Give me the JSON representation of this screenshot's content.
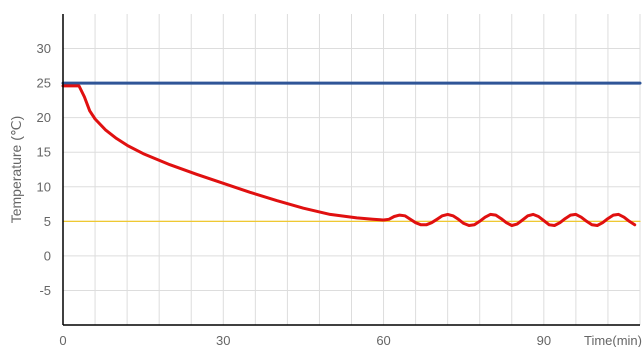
{
  "chart_data": {
    "type": "line",
    "xlabel": "Time(min)",
    "ylabel": "Temperature (℃)",
    "xlim": [
      0,
      108
    ],
    "ylim": [
      -10,
      35
    ],
    "x_ticks": [
      0,
      30,
      60,
      90
    ],
    "y_ticks": [
      -5,
      0,
      5,
      10,
      15,
      20,
      25,
      30
    ],
    "grid": true,
    "colors": {
      "grid": "#dddddd",
      "axis": "#000000",
      "setpoint": "#f0c419",
      "ambient": "#2f5597",
      "measured": "#e01010"
    },
    "series": [
      {
        "key": "ambient",
        "x": [
          0,
          108
        ],
        "values": [
          25.0,
          25.0
        ]
      },
      {
        "key": "setpoint",
        "x": [
          0,
          108
        ],
        "values": [
          5.0,
          5.0
        ]
      },
      {
        "key": "measured",
        "x": [
          0,
          3,
          4,
          5,
          6,
          8,
          10,
          12,
          15,
          20,
          25,
          30,
          35,
          40,
          45,
          50,
          55,
          58,
          60,
          61,
          62,
          63,
          64,
          65,
          66,
          67,
          68,
          69,
          70,
          71,
          72,
          73,
          74,
          75,
          76,
          77,
          78,
          79,
          80,
          81,
          82,
          83,
          84,
          85,
          86,
          87,
          88,
          89,
          90,
          91,
          92,
          93,
          94,
          95,
          96,
          97,
          98,
          99,
          100,
          101,
          102,
          103,
          104,
          105,
          106,
          107
        ],
        "values": [
          24.6,
          24.6,
          23.0,
          21.0,
          19.8,
          18.2,
          17.0,
          16.0,
          14.8,
          13.2,
          11.8,
          10.5,
          9.2,
          8.0,
          6.9,
          6.0,
          5.5,
          5.3,
          5.2,
          5.3,
          5.7,
          5.9,
          5.8,
          5.3,
          4.8,
          4.5,
          4.5,
          4.8,
          5.3,
          5.8,
          6.0,
          5.8,
          5.3,
          4.7,
          4.4,
          4.5,
          5.0,
          5.6,
          6.0,
          5.9,
          5.4,
          4.8,
          4.4,
          4.6,
          5.2,
          5.8,
          6.0,
          5.7,
          5.1,
          4.5,
          4.4,
          4.8,
          5.4,
          5.9,
          6.0,
          5.6,
          5.0,
          4.5,
          4.4,
          4.8,
          5.4,
          5.9,
          6.0,
          5.6,
          5.0,
          4.5
        ]
      }
    ]
  }
}
